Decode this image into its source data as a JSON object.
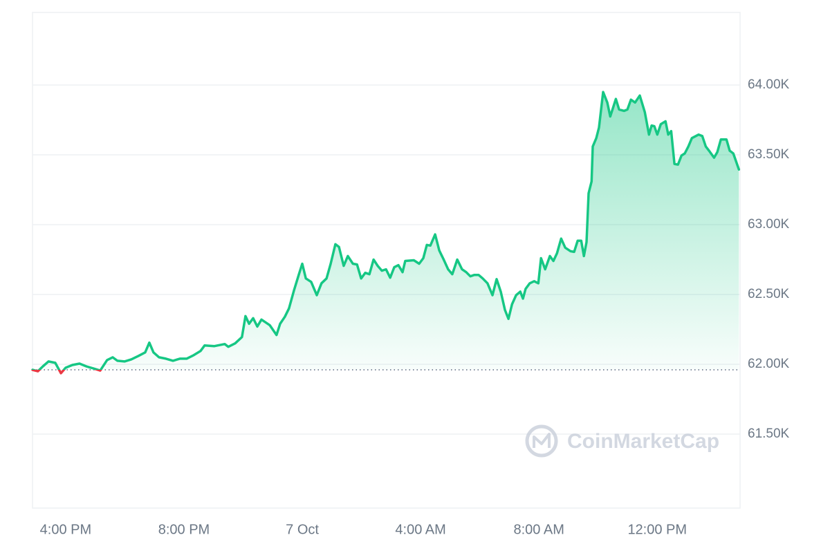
{
  "chart_data": {
    "type": "line",
    "watermark": "CoinMarketCap",
    "color": "#16c784",
    "down_color": "#ea3943",
    "baseline": 61960,
    "grid": true,
    "xlim": [
      14.88,
      38.8
    ],
    "ylim": [
      60970,
      64520
    ],
    "xticks": [
      {
        "value": 16,
        "label": "4:00 PM"
      },
      {
        "value": 20,
        "label": "8:00 PM"
      },
      {
        "value": 24,
        "label": "7 Oct"
      },
      {
        "value": 28,
        "label": "4:00 AM"
      },
      {
        "value": 32,
        "label": "8:00 AM"
      },
      {
        "value": 36,
        "label": "12:00 PM"
      }
    ],
    "yticks": [
      {
        "value": 61500,
        "label": "61.50K"
      },
      {
        "value": 62000,
        "label": "62.00K"
      },
      {
        "value": 62500,
        "label": "62.50K"
      },
      {
        "value": 63000,
        "label": "63.00K"
      },
      {
        "value": 63500,
        "label": "63.50K"
      },
      {
        "value": 64000,
        "label": "64.00K"
      }
    ],
    "x": [
      14.88,
      15.06,
      15.23,
      15.42,
      15.65,
      15.84,
      16.0,
      16.23,
      16.47,
      16.7,
      16.94,
      17.17,
      17.4,
      17.59,
      17.75,
      17.99,
      18.22,
      18.46,
      18.69,
      18.83,
      18.97,
      19.16,
      19.39,
      19.63,
      19.86,
      20.09,
      20.33,
      20.56,
      20.7,
      21.03,
      21.38,
      21.5,
      21.73,
      21.96,
      22.08,
      22.2,
      22.34,
      22.48,
      22.62,
      22.9,
      23.13,
      23.25,
      23.41,
      23.55,
      23.72,
      23.88,
      24.0,
      24.12,
      24.3,
      24.49,
      24.65,
      24.82,
      24.96,
      25.12,
      25.24,
      25.4,
      25.54,
      25.71,
      25.85,
      25.99,
      26.13,
      26.27,
      26.41,
      26.55,
      26.69,
      26.83,
      26.97,
      27.11,
      27.25,
      27.39,
      27.48,
      27.77,
      27.95,
      28.09,
      28.21,
      28.33,
      28.49,
      28.63,
      28.77,
      28.93,
      29.07,
      29.24,
      29.4,
      29.54,
      29.68,
      29.82,
      29.96,
      30.1,
      30.26,
      30.43,
      30.57,
      30.71,
      30.85,
      30.97,
      31.09,
      31.23,
      31.37,
      31.46,
      31.55,
      31.69,
      31.84,
      31.98,
      32.07,
      32.21,
      32.37,
      32.49,
      32.61,
      32.75,
      32.89,
      33.07,
      33.19,
      33.31,
      33.43,
      33.52,
      33.61,
      33.68,
      33.78,
      33.82,
      33.94,
      34.03,
      34.17,
      34.31,
      34.41,
      34.6,
      34.71,
      34.88,
      34.99,
      35.11,
      35.25,
      35.41,
      35.58,
      35.72,
      35.81,
      35.9,
      36.0,
      36.12,
      36.28,
      36.37,
      36.47,
      36.58,
      36.7,
      36.82,
      36.93,
      37.05,
      37.17,
      37.4,
      37.52,
      37.64,
      37.75,
      37.92,
      38.03,
      38.15,
      38.34,
      38.45,
      38.57,
      38.76
    ],
    "values": [
      61960,
      61950,
      61985,
      62020,
      62010,
      61936,
      61975,
      61995,
      62005,
      61985,
      61970,
      61955,
      62030,
      62050,
      62025,
      62020,
      62035,
      62060,
      62085,
      62155,
      62085,
      62050,
      62040,
      62025,
      62040,
      62040,
      62065,
      62095,
      62135,
      62130,
      62145,
      62125,
      62150,
      62195,
      62345,
      62290,
      62330,
      62270,
      62320,
      62280,
      62210,
      62290,
      62340,
      62400,
      62530,
      62640,
      62720,
      62615,
      62590,
      62495,
      62580,
      62615,
      62720,
      62860,
      62840,
      62705,
      62775,
      62720,
      62715,
      62615,
      62655,
      62645,
      62750,
      62705,
      62670,
      62680,
      62620,
      62695,
      62710,
      62660,
      62740,
      62745,
      62720,
      62760,
      62855,
      62850,
      62930,
      62815,
      62755,
      62680,
      62645,
      62750,
      62680,
      62660,
      62630,
      62640,
      62640,
      62615,
      62580,
      62495,
      62610,
      62520,
      62390,
      62325,
      62430,
      62495,
      62520,
      62470,
      62540,
      62580,
      62595,
      62580,
      62760,
      62680,
      62775,
      62740,
      62795,
      62900,
      62835,
      62810,
      62805,
      62885,
      62885,
      62775,
      62875,
      63225,
      63310,
      63560,
      63620,
      63695,
      63950,
      63875,
      63775,
      63900,
      63825,
      63815,
      63825,
      63895,
      63875,
      63925,
      63805,
      63645,
      63710,
      63705,
      63645,
      63720,
      63740,
      63645,
      63670,
      63435,
      63430,
      63495,
      63510,
      63560,
      63620,
      63645,
      63635,
      63560,
      63530,
      63480,
      63520,
      63610,
      63610,
      63530,
      63510,
      63395
    ]
  }
}
